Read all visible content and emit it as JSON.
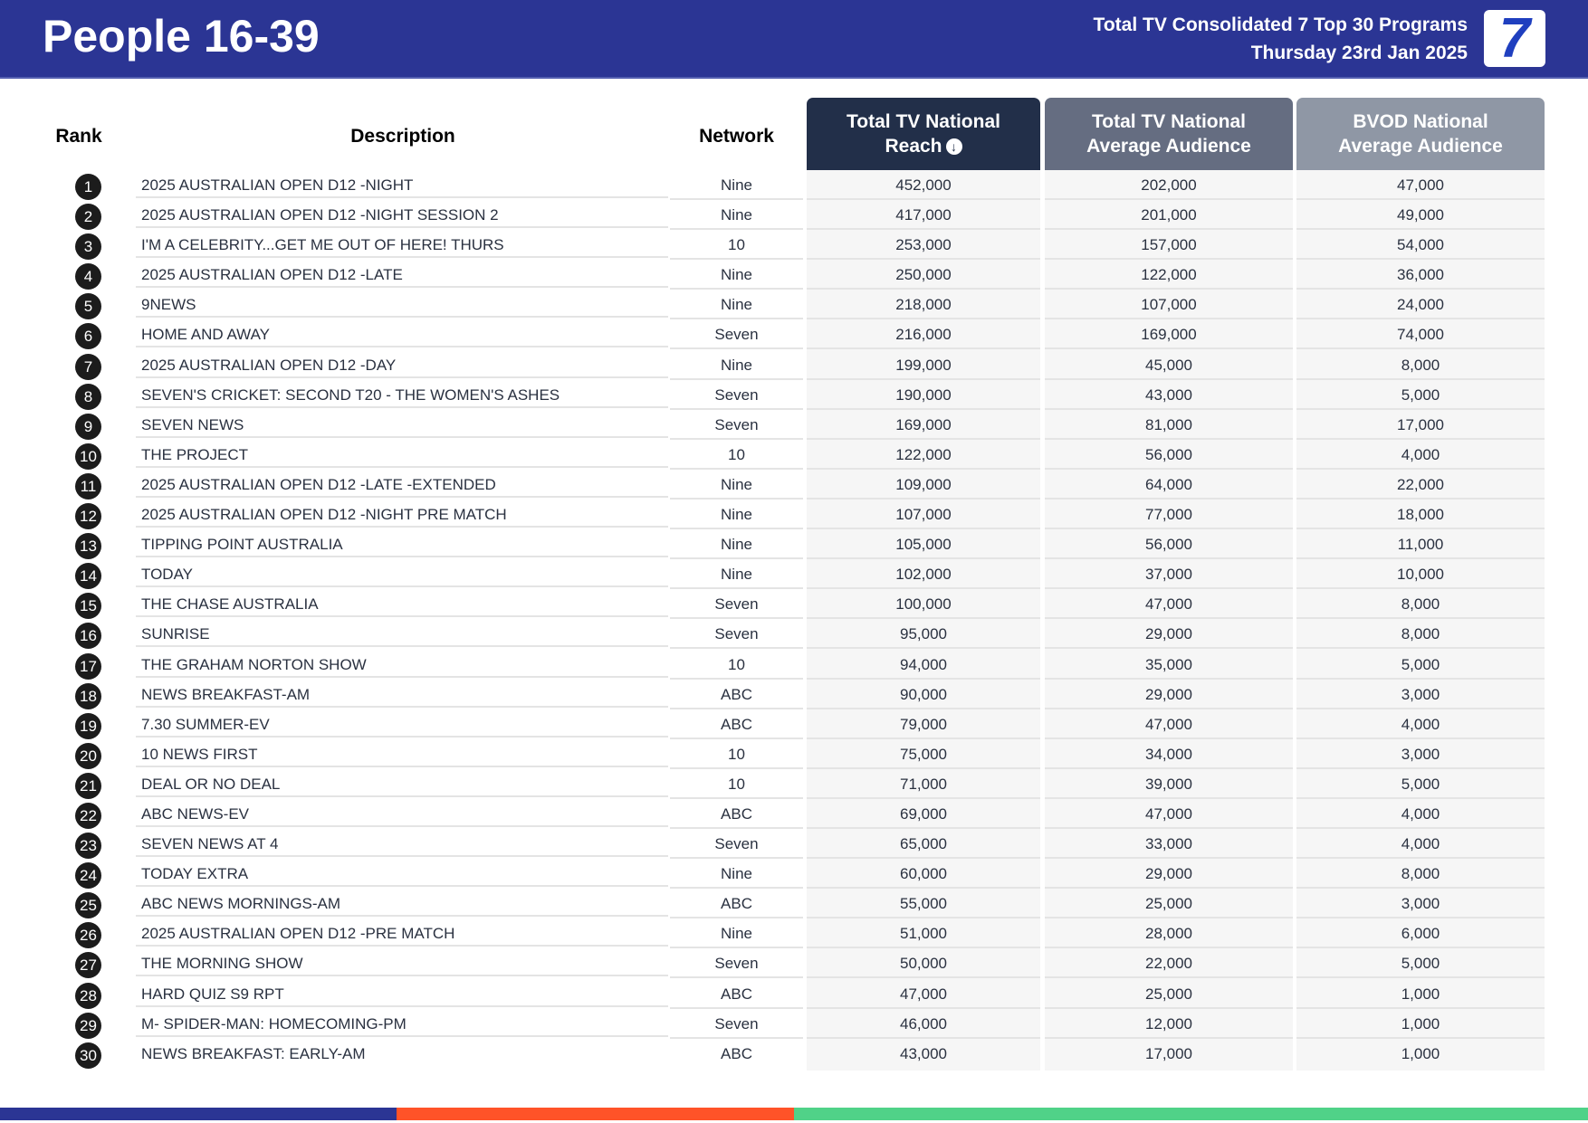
{
  "header": {
    "title": "People 16-39",
    "subtitle_line1": "Total TV Consolidated 7 Top 30 Programs",
    "subtitle_line2": "Thursday 23rd Jan 2025",
    "logo_text": "7"
  },
  "columns": {
    "rank": "Rank",
    "description": "Description",
    "network": "Network",
    "reach_line1": "Total TV National",
    "reach_line2": "Reach",
    "avg_line1": "Total TV National",
    "avg_line2": "Average Audience",
    "bvod_line1": "BVOD National",
    "bvod_line2": "Average Audience",
    "sort_icon": "arrow-down-circle"
  },
  "colors": {
    "header_bg": "#2b3594",
    "reach_header": "#222f49",
    "avg_header": "#656d81",
    "bvod_header": "#8f97a5",
    "footer_blue": "#2b3594",
    "footer_orange": "#ff5328",
    "footer_green": "#50d288"
  },
  "rows": [
    {
      "rank": "1",
      "description": "2025 AUSTRALIAN OPEN D12 -NIGHT",
      "network": "Nine",
      "reach": "452,000",
      "avg": "202,000",
      "bvod": "47,000"
    },
    {
      "rank": "2",
      "description": "2025 AUSTRALIAN OPEN D12 -NIGHT SESSION 2",
      "network": "Nine",
      "reach": "417,000",
      "avg": "201,000",
      "bvod": "49,000"
    },
    {
      "rank": "3",
      "description": "I'M A CELEBRITY...GET ME OUT OF HERE! THURS",
      "network": "10",
      "reach": "253,000",
      "avg": "157,000",
      "bvod": "54,000"
    },
    {
      "rank": "4",
      "description": "2025 AUSTRALIAN OPEN D12 -LATE",
      "network": "Nine",
      "reach": "250,000",
      "avg": "122,000",
      "bvod": "36,000"
    },
    {
      "rank": "5",
      "description": "9NEWS",
      "network": "Nine",
      "reach": "218,000",
      "avg": "107,000",
      "bvod": "24,000"
    },
    {
      "rank": "6",
      "description": "HOME AND AWAY",
      "network": "Seven",
      "reach": "216,000",
      "avg": "169,000",
      "bvod": "74,000"
    },
    {
      "rank": "7",
      "description": "2025 AUSTRALIAN OPEN D12 -DAY",
      "network": "Nine",
      "reach": "199,000",
      "avg": "45,000",
      "bvod": "8,000"
    },
    {
      "rank": "8",
      "description": "SEVEN'S CRICKET: SECOND T20 - THE WOMEN'S ASHES",
      "network": "Seven",
      "reach": "190,000",
      "avg": "43,000",
      "bvod": "5,000"
    },
    {
      "rank": "9",
      "description": "SEVEN NEWS",
      "network": "Seven",
      "reach": "169,000",
      "avg": "81,000",
      "bvod": "17,000"
    },
    {
      "rank": "10",
      "description": "THE PROJECT",
      "network": "10",
      "reach": "122,000",
      "avg": "56,000",
      "bvod": "4,000"
    },
    {
      "rank": "11",
      "description": "2025 AUSTRALIAN OPEN D12 -LATE -EXTENDED",
      "network": "Nine",
      "reach": "109,000",
      "avg": "64,000",
      "bvod": "22,000"
    },
    {
      "rank": "12",
      "description": "2025 AUSTRALIAN OPEN D12 -NIGHT PRE MATCH",
      "network": "Nine",
      "reach": "107,000",
      "avg": "77,000",
      "bvod": "18,000"
    },
    {
      "rank": "13",
      "description": "TIPPING POINT AUSTRALIA",
      "network": "Nine",
      "reach": "105,000",
      "avg": "56,000",
      "bvod": "11,000"
    },
    {
      "rank": "14",
      "description": "TODAY",
      "network": "Nine",
      "reach": "102,000",
      "avg": "37,000",
      "bvod": "10,000"
    },
    {
      "rank": "15",
      "description": "THE CHASE AUSTRALIA",
      "network": "Seven",
      "reach": "100,000",
      "avg": "47,000",
      "bvod": "8,000"
    },
    {
      "rank": "16",
      "description": "SUNRISE",
      "network": "Seven",
      "reach": "95,000",
      "avg": "29,000",
      "bvod": "8,000"
    },
    {
      "rank": "17",
      "description": "THE GRAHAM NORTON SHOW",
      "network": "10",
      "reach": "94,000",
      "avg": "35,000",
      "bvod": "5,000"
    },
    {
      "rank": "18",
      "description": "NEWS BREAKFAST-AM",
      "network": "ABC",
      "reach": "90,000",
      "avg": "29,000",
      "bvod": "3,000"
    },
    {
      "rank": "19",
      "description": "7.30 SUMMER-EV",
      "network": "ABC",
      "reach": "79,000",
      "avg": "47,000",
      "bvod": "4,000"
    },
    {
      "rank": "20",
      "description": "10 NEWS FIRST",
      "network": "10",
      "reach": "75,000",
      "avg": "34,000",
      "bvod": "3,000"
    },
    {
      "rank": "21",
      "description": "DEAL OR NO DEAL",
      "network": "10",
      "reach": "71,000",
      "avg": "39,000",
      "bvod": "5,000"
    },
    {
      "rank": "22",
      "description": "ABC NEWS-EV",
      "network": "ABC",
      "reach": "69,000",
      "avg": "47,000",
      "bvod": "4,000"
    },
    {
      "rank": "23",
      "description": "SEVEN NEWS AT 4",
      "network": "Seven",
      "reach": "65,000",
      "avg": "33,000",
      "bvod": "4,000"
    },
    {
      "rank": "24",
      "description": "TODAY EXTRA",
      "network": "Nine",
      "reach": "60,000",
      "avg": "29,000",
      "bvod": "8,000"
    },
    {
      "rank": "25",
      "description": "ABC NEWS MORNINGS-AM",
      "network": "ABC",
      "reach": "55,000",
      "avg": "25,000",
      "bvod": "3,000"
    },
    {
      "rank": "26",
      "description": "2025 AUSTRALIAN OPEN D12 -PRE MATCH",
      "network": "Nine",
      "reach": "51,000",
      "avg": "28,000",
      "bvod": "6,000"
    },
    {
      "rank": "27",
      "description": "THE MORNING SHOW",
      "network": "Seven",
      "reach": "50,000",
      "avg": "22,000",
      "bvod": "5,000"
    },
    {
      "rank": "28",
      "description": "HARD QUIZ S9 RPT",
      "network": "ABC",
      "reach": "47,000",
      "avg": "25,000",
      "bvod": "1,000"
    },
    {
      "rank": "29",
      "description": "M- SPIDER-MAN: HOMECOMING-PM",
      "network": "Seven",
      "reach": "46,000",
      "avg": "12,000",
      "bvod": "1,000"
    },
    {
      "rank": "30",
      "description": "NEWS BREAKFAST: EARLY-AM",
      "network": "ABC",
      "reach": "43,000",
      "avg": "17,000",
      "bvod": "1,000"
    }
  ]
}
